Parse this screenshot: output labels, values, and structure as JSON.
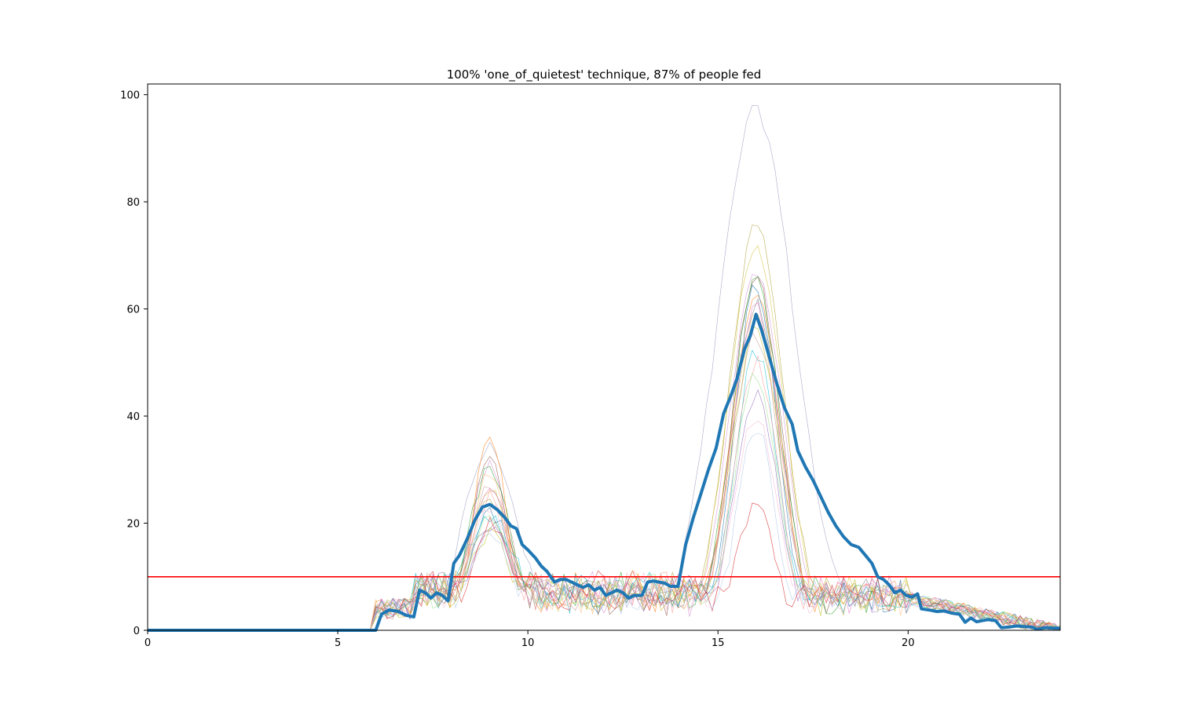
{
  "chart_data": {
    "type": "line",
    "title": "100% 'one_of_quietest' technique, 87% of people fed",
    "xlabel": "",
    "ylabel": "",
    "xlim": [
      0,
      24
    ],
    "ylim": [
      0,
      102
    ],
    "x_ticks": [
      0,
      5,
      10,
      15,
      20
    ],
    "y_ticks": [
      0,
      20,
      40,
      60,
      80,
      100
    ],
    "grid": false,
    "legend": "none",
    "threshold": {
      "y": 10,
      "color": "#ff0000"
    },
    "mean_series": {
      "color": "#1f77b4",
      "points": [
        [
          0,
          0
        ],
        [
          6,
          0
        ],
        [
          6.15,
          3
        ],
        [
          6.35,
          3.8
        ],
        [
          6.6,
          3.5
        ],
        [
          6.8,
          2.8
        ],
        [
          7,
          2.5
        ],
        [
          7.15,
          7.5
        ],
        [
          7.3,
          7
        ],
        [
          7.45,
          6
        ],
        [
          7.6,
          7
        ],
        [
          7.75,
          6.5
        ],
        [
          7.9,
          5.5
        ],
        [
          8.05,
          12.5
        ],
        [
          8.2,
          14
        ],
        [
          8.4,
          17
        ],
        [
          8.6,
          20.5
        ],
        [
          8.8,
          23
        ],
        [
          9,
          23.5
        ],
        [
          9.2,
          22.5
        ],
        [
          9.4,
          21
        ],
        [
          9.55,
          19.5
        ],
        [
          9.7,
          19
        ],
        [
          9.85,
          16
        ],
        [
          10,
          15
        ],
        [
          10.2,
          13.5
        ],
        [
          10.35,
          12
        ],
        [
          10.5,
          11
        ],
        [
          10.7,
          9
        ],
        [
          10.85,
          9.5
        ],
        [
          11,
          9.5
        ],
        [
          11.15,
          9
        ],
        [
          11.3,
          8.5
        ],
        [
          11.45,
          8
        ],
        [
          11.6,
          8.5
        ],
        [
          11.75,
          7.5
        ],
        [
          11.9,
          8
        ],
        [
          12.05,
          6.5
        ],
        [
          12.2,
          7
        ],
        [
          12.35,
          7.5
        ],
        [
          12.5,
          7
        ],
        [
          12.65,
          6
        ],
        [
          12.8,
          6.5
        ],
        [
          13,
          6.5
        ],
        [
          13.15,
          9
        ],
        [
          13.3,
          9.2
        ],
        [
          13.45,
          9
        ],
        [
          13.6,
          8.8
        ],
        [
          13.75,
          8.2
        ],
        [
          13.95,
          8.2
        ],
        [
          14.15,
          16
        ],
        [
          14.35,
          21
        ],
        [
          14.55,
          25.5
        ],
        [
          14.75,
          30
        ],
        [
          14.95,
          34
        ],
        [
          15.15,
          40.5
        ],
        [
          15.35,
          44
        ],
        [
          15.5,
          47
        ],
        [
          15.7,
          52.5
        ],
        [
          15.85,
          55
        ],
        [
          16,
          59
        ],
        [
          16.15,
          56
        ],
        [
          16.35,
          51
        ],
        [
          16.55,
          46
        ],
        [
          16.75,
          41.5
        ],
        [
          16.95,
          38.5
        ],
        [
          17.1,
          33.5
        ],
        [
          17.3,
          30.5
        ],
        [
          17.5,
          28
        ],
        [
          17.7,
          25
        ],
        [
          17.9,
          22
        ],
        [
          18.1,
          19.5
        ],
        [
          18.3,
          17.5
        ],
        [
          18.5,
          16
        ],
        [
          18.7,
          15.5
        ],
        [
          18.9,
          13.8
        ],
        [
          19.05,
          12.5
        ],
        [
          19.2,
          10
        ],
        [
          19.35,
          9.5
        ],
        [
          19.5,
          8.5
        ],
        [
          19.65,
          7
        ],
        [
          19.8,
          7.5
        ],
        [
          19.95,
          6.5
        ],
        [
          20.1,
          6.2
        ],
        [
          20.25,
          6.8
        ],
        [
          20.35,
          4
        ],
        [
          20.55,
          3.8
        ],
        [
          20.75,
          3.5
        ],
        [
          20.95,
          3.6
        ],
        [
          21.15,
          3.2
        ],
        [
          21.35,
          3
        ],
        [
          21.5,
          1.5
        ],
        [
          21.65,
          2.3
        ],
        [
          21.8,
          1.6
        ],
        [
          21.95,
          1.8
        ],
        [
          22.1,
          2
        ],
        [
          22.3,
          1.8
        ],
        [
          22.45,
          0.5
        ],
        [
          22.65,
          0.6
        ],
        [
          22.85,
          0.8
        ],
        [
          23.05,
          0.7
        ],
        [
          23.25,
          0.6
        ],
        [
          23.4,
          0.2
        ],
        [
          23.6,
          0.5
        ],
        [
          23.8,
          0.4
        ],
        [
          24,
          0.4
        ]
      ]
    },
    "sample_series_peaks": [
      {
        "color": "#9d9dc4",
        "peak1": 34,
        "peak2": 97,
        "spread1": 1.0,
        "spread2": 1.4
      },
      {
        "color": "#b0a13a",
        "peak1": 24,
        "peak2": 75,
        "spread1": 0.8,
        "spread2": 1.0
      },
      {
        "color": "#d4c23b",
        "peak1": 26,
        "peak2": 72,
        "spread1": 0.8,
        "spread2": 1.0
      },
      {
        "color": "#d28fd2",
        "peak1": 31,
        "peak2": 67,
        "spread1": 0.7,
        "spread2": 1.0
      },
      {
        "color": "#8c564b",
        "peak1": 32,
        "peak2": 66,
        "spread1": 0.7,
        "spread2": 0.9
      },
      {
        "color": "#2ca02c",
        "peak1": 30,
        "peak2": 65,
        "spread1": 0.8,
        "spread2": 0.9
      },
      {
        "color": "#ff7f0e",
        "peak1": 37,
        "peak2": 63,
        "spread1": 0.6,
        "spread2": 0.9
      },
      {
        "color": "#1f77b4",
        "peak1": 22,
        "peak2": 64,
        "spread1": 0.8,
        "spread2": 0.8
      },
      {
        "color": "#17becf",
        "peak1": 21,
        "peak2": 52,
        "spread1": 1.0,
        "spread2": 0.8
      },
      {
        "color": "#7f7f7f",
        "peak1": 20,
        "peak2": 61,
        "spread1": 0.8,
        "spread2": 0.9
      },
      {
        "color": "#bcbd22",
        "peak1": 18,
        "peak2": 56,
        "spread1": 0.8,
        "spread2": 0.9
      },
      {
        "color": "#e377c2",
        "peak1": 27,
        "peak2": 60,
        "spread1": 0.7,
        "spread2": 0.9
      },
      {
        "color": "#9467bd",
        "peak1": 19,
        "peak2": 44,
        "spread1": 0.8,
        "spread2": 0.8
      },
      {
        "color": "#ff9896",
        "peak1": 25,
        "peak2": 50,
        "spread1": 0.7,
        "spread2": 0.8
      },
      {
        "color": "#98df8a",
        "peak1": 22,
        "peak2": 48,
        "spread1": 0.8,
        "spread2": 0.8
      },
      {
        "color": "#c49c94",
        "peak1": 28,
        "peak2": 55,
        "spread1": 0.8,
        "spread2": 0.9
      },
      {
        "color": "#f7b6d2",
        "peak1": 23,
        "peak2": 40,
        "spread1": 0.8,
        "spread2": 0.8
      },
      {
        "color": "#d62728",
        "peak1": 20,
        "peak2": 23,
        "spread1": 0.7,
        "spread2": 0.7
      },
      {
        "color": "#aec7e8",
        "peak1": 17,
        "peak2": 38,
        "spread1": 0.8,
        "spread2": 0.7
      },
      {
        "color": "#ffbb78",
        "peak1": 29,
        "peak2": 58,
        "spread1": 0.7,
        "spread2": 0.9
      }
    ]
  }
}
